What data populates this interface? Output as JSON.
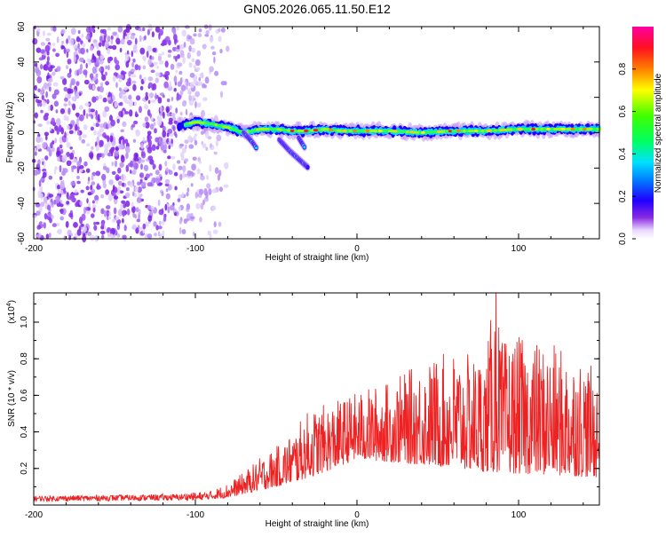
{
  "figure": {
    "title": "GN05.2026.065.11.50.E12"
  },
  "chart_data": [
    {
      "type": "heatmap",
      "title": "GN05.2026.065.11.50.E12",
      "xlabel": "Height of straight line (km)",
      "ylabel": "Frequency (Hz)",
      "xlim": [
        -200,
        150
      ],
      "ylim": [
        -60,
        60
      ],
      "xticks": [
        -200,
        -100,
        0,
        100
      ],
      "yticks": [
        -60,
        -40,
        -20,
        0,
        20,
        40,
        60
      ],
      "xtick_labels": [
        "-200",
        "-100",
        "0",
        "100"
      ],
      "ytick_labels": [
        "-60",
        "-40",
        "-20",
        "0",
        "20",
        "40",
        "60"
      ],
      "colorbar": {
        "label": "Normalized spectral amplitude",
        "range": [
          0,
          1
        ],
        "ticks": [
          0.0,
          0.2,
          0.4,
          0.6,
          0.8
        ],
        "tick_labels": [
          "0.0",
          "0.2",
          "0.4",
          "0.6",
          "0.8"
        ]
      },
      "ridge": {
        "description_x": [
          -110,
          -100,
          -90,
          -80,
          -70,
          -60,
          -50,
          -40,
          -30,
          -20,
          -10,
          0,
          20,
          40,
          60,
          80,
          100,
          120,
          150
        ],
        "frequency_hz": [
          4,
          6,
          5,
          3,
          0,
          2,
          2,
          1,
          1,
          2,
          1,
          1,
          1,
          0,
          1,
          1,
          2,
          2,
          2
        ]
      },
      "side_branches": [
        {
          "x": [
            -70,
            -65,
            -62
          ],
          "freq_hz": [
            0,
            -5,
            -9
          ]
        },
        {
          "x": [
            -48,
            -42,
            -36,
            -30
          ],
          "freq_hz": [
            -4,
            -10,
            -15,
            -20
          ]
        },
        {
          "x": [
            -36,
            -32
          ],
          "freq_hz": [
            -3,
            -9
          ]
        }
      ],
      "noise_region_x": [
        -200,
        -80
      ]
    },
    {
      "type": "line",
      "xlabel": "Height of straight line (km)",
      "ylabel": "SNR (10 * v/v)",
      "y_multiplier_label": "(x10",
      "y_multiplier_exp": "4",
      "y_multiplier_close": ")",
      "xlim": [
        -200,
        150
      ],
      "ylim": [
        0,
        1.16
      ],
      "xticks": [
        -200,
        -100,
        0,
        100
      ],
      "yticks": [
        0.2,
        0.4,
        0.6,
        0.8,
        1.0
      ],
      "xtick_labels": [
        "-200",
        "-100",
        "0",
        "100"
      ],
      "ytick_labels": [
        "0.2",
        "0.4",
        "0.6",
        "0.8",
        "1.0"
      ],
      "series": [
        {
          "name": "SNR",
          "color": "#ee2222",
          "envelope_x": [
            -200,
            -110,
            -90,
            -80,
            -70,
            -60,
            -50,
            -40,
            -30,
            -20,
            -10,
            0,
            20,
            40,
            60,
            70,
            80,
            85,
            90,
            100,
            120,
            140,
            150
          ],
          "envelope_peak": [
            0.05,
            0.06,
            0.08,
            0.12,
            0.18,
            0.26,
            0.32,
            0.4,
            0.52,
            0.55,
            0.58,
            0.62,
            0.68,
            0.78,
            0.85,
            0.82,
            0.85,
            1.16,
            0.9,
            0.92,
            0.88,
            0.82,
            0.7
          ],
          "baseline_x": [
            -200,
            -100,
            -80,
            -60,
            -40,
            -20,
            0,
            40,
            80,
            150
          ],
          "baseline_y": [
            0.02,
            0.025,
            0.04,
            0.08,
            0.12,
            0.18,
            0.25,
            0.22,
            0.18,
            0.15
          ],
          "peak_x": 86,
          "peak_y": 1.16
        }
      ]
    }
  ],
  "colors": {
    "axis": "#000000",
    "line": "#ee2222",
    "background": "#ffffff"
  }
}
